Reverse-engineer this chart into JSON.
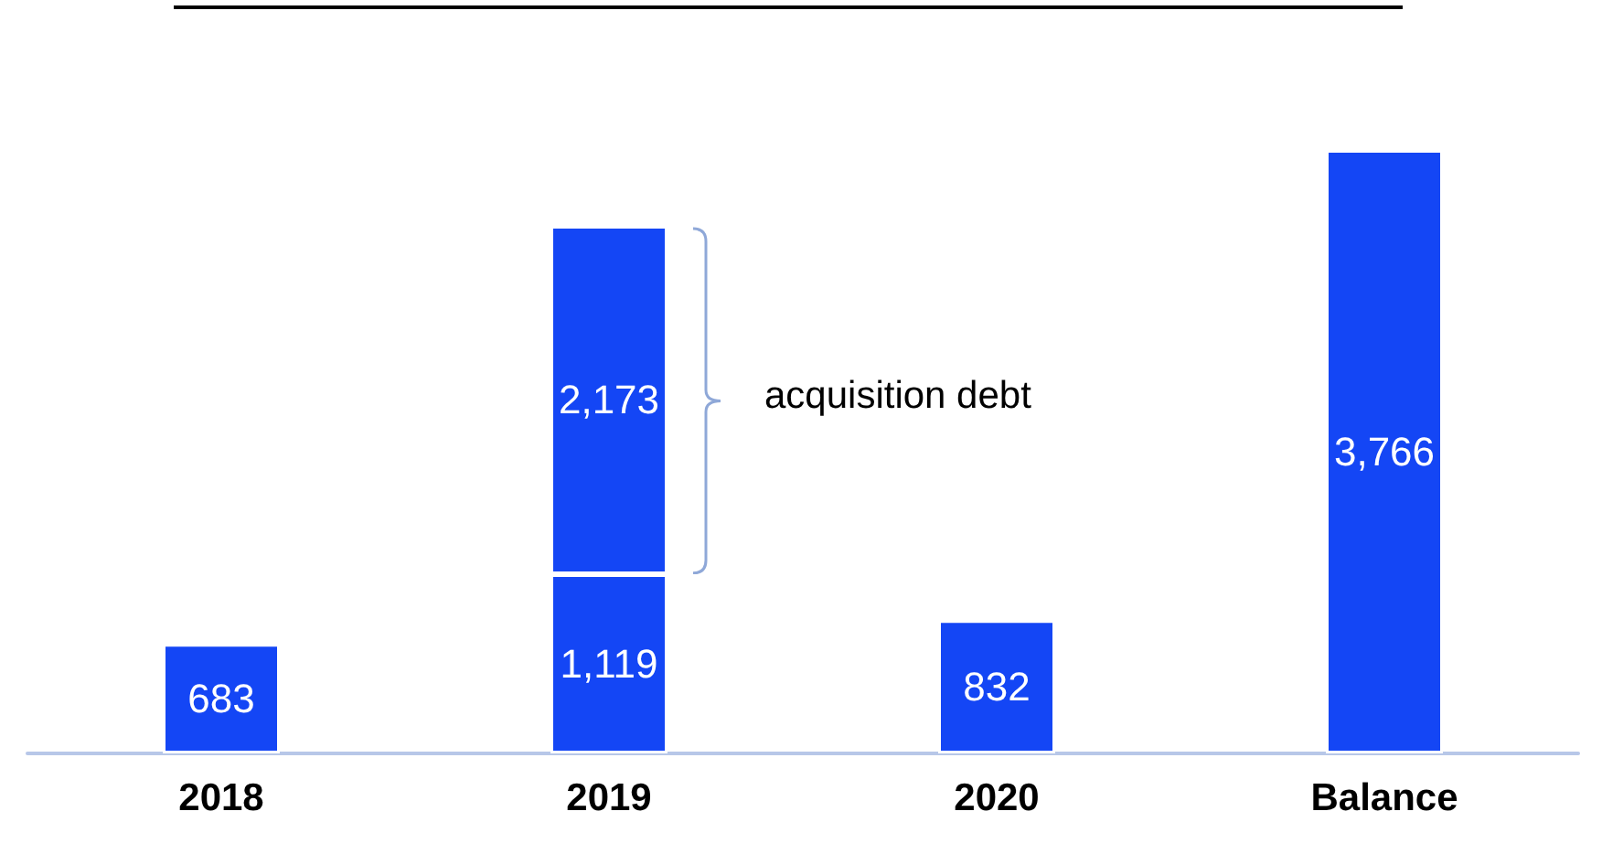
{
  "chart_data": {
    "type": "bar",
    "categories": [
      "2018",
      "2019",
      "2020",
      "Balance"
    ],
    "stacked": true,
    "series": [
      {
        "color": "#1446f5",
        "values": [
          683,
          1119,
          832,
          3766
        ],
        "value_labels": [
          "683",
          "1,119",
          "832",
          "3,766"
        ]
      },
      {
        "color": "#1446f5",
        "values": [
          null,
          2173,
          null,
          null
        ],
        "value_labels": [
          null,
          "2,173",
          null,
          null
        ]
      }
    ],
    "annotations": [
      "acquisition debt"
    ]
  }
}
